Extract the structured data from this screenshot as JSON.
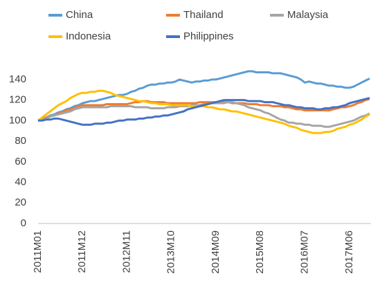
{
  "chart_data": {
    "type": "line",
    "categories": [
      "2011M01",
      null,
      null,
      null,
      null,
      null,
      null,
      null,
      null,
      null,
      null,
      "2011M12",
      null,
      null,
      null,
      null,
      null,
      null,
      null,
      null,
      null,
      null,
      "2012M11",
      null,
      null,
      null,
      null,
      null,
      null,
      null,
      null,
      null,
      null,
      "2013M10",
      null,
      null,
      null,
      null,
      null,
      null,
      null,
      null,
      null,
      null,
      "2014M09",
      null,
      null,
      null,
      null,
      null,
      null,
      null,
      null,
      null,
      null,
      "2015M08",
      null,
      null,
      null,
      null,
      null,
      null,
      null,
      null,
      null,
      null,
      "2016M07",
      null,
      null,
      null,
      null,
      null,
      null,
      null,
      null,
      null,
      null,
      "2017M06",
      null,
      null,
      null,
      null,
      null
    ],
    "series": [
      {
        "name": "China",
        "color": "#5b9bd5",
        "values": [
          100,
          102,
          103,
          105,
          106,
          108,
          109,
          111,
          112,
          114,
          115,
          117,
          118,
          119,
          119,
          120,
          121,
          122,
          123,
          124,
          125,
          125,
          126,
          128,
          129,
          131,
          132,
          134,
          135,
          135,
          136,
          136,
          137,
          137,
          138,
          140,
          139,
          138,
          137,
          138,
          138,
          139,
          139,
          140,
          140,
          141,
          142,
          143,
          144,
          145,
          146,
          147,
          148,
          148,
          147,
          147,
          147,
          147,
          146,
          146,
          146,
          145,
          144,
          143,
          142,
          140,
          137,
          138,
          137,
          136,
          136,
          135,
          134,
          134,
          133,
          133,
          132,
          132,
          133,
          135,
          137,
          139,
          141
        ]
      },
      {
        "name": "Thailand",
        "color": "#ed7d31",
        "values": [
          100,
          101,
          103,
          104,
          105,
          107,
          108,
          110,
          111,
          112,
          114,
          115,
          115,
          115,
          115,
          115,
          115,
          116,
          116,
          116,
          116,
          116,
          116,
          117,
          118,
          118,
          119,
          119,
          118,
          118,
          118,
          118,
          117,
          117,
          117,
          117,
          117,
          117,
          117,
          117,
          118,
          118,
          118,
          118,
          118,
          118,
          118,
          118,
          117,
          117,
          117,
          117,
          116,
          116,
          116,
          115,
          115,
          115,
          114,
          114,
          114,
          113,
          113,
          112,
          111,
          111,
          110,
          110,
          110,
          110,
          110,
          110,
          110,
          111,
          112,
          113,
          113,
          114,
          115,
          117,
          118,
          120,
          121
        ]
      },
      {
        "name": "Malaysia",
        "color": "#a5a5a5",
        "values": [
          100,
          101,
          102,
          104,
          105,
          106,
          107,
          108,
          109,
          111,
          112,
          113,
          113,
          113,
          113,
          113,
          113,
          113,
          114,
          114,
          114,
          114,
          114,
          114,
          113,
          113,
          113,
          113,
          112,
          112,
          112,
          112,
          113,
          113,
          113,
          114,
          114,
          114,
          115,
          115,
          115,
          116,
          116,
          117,
          117,
          117,
          117,
          118,
          118,
          117,
          116,
          115,
          113,
          112,
          111,
          110,
          108,
          107,
          105,
          103,
          101,
          100,
          98,
          98,
          97,
          97,
          96,
          96,
          95,
          95,
          95,
          94,
          94,
          95,
          96,
          97,
          98,
          99,
          100,
          102,
          104,
          105,
          107
        ]
      },
      {
        "name": "Indonesia",
        "color": "#ffc000",
        "values": [
          100,
          103,
          106,
          109,
          112,
          115,
          117,
          119,
          122,
          124,
          126,
          127,
          127,
          128,
          128,
          129,
          129,
          128,
          127,
          125,
          124,
          123,
          122,
          121,
          120,
          119,
          119,
          118,
          117,
          117,
          116,
          116,
          116,
          115,
          115,
          115,
          115,
          115,
          114,
          114,
          114,
          114,
          113,
          113,
          112,
          111,
          111,
          110,
          109,
          109,
          108,
          107,
          106,
          105,
          104,
          103,
          102,
          101,
          100,
          99,
          98,
          97,
          95,
          94,
          93,
          91,
          90,
          89,
          88,
          88,
          88,
          89,
          89,
          90,
          92,
          93,
          94,
          96,
          97,
          99,
          101,
          104,
          106
        ]
      },
      {
        "name": "Philippines",
        "color": "#4472c4",
        "values": [
          100,
          100,
          101,
          101,
          102,
          102,
          101,
          100,
          99,
          98,
          97,
          96,
          96,
          96,
          97,
          97,
          97,
          98,
          98,
          99,
          100,
          100,
          101,
          101,
          101,
          102,
          102,
          103,
          103,
          104,
          104,
          105,
          105,
          106,
          107,
          108,
          109,
          111,
          112,
          113,
          114,
          115,
          116,
          117,
          118,
          119,
          120,
          120,
          120,
          120,
          120,
          120,
          119,
          119,
          119,
          119,
          118,
          118,
          118,
          117,
          116,
          115,
          115,
          114,
          113,
          113,
          112,
          112,
          112,
          111,
          111,
          112,
          112,
          113,
          113,
          114,
          115,
          117,
          118,
          119,
          120,
          121,
          122
        ]
      }
    ],
    "ylim": [
      0,
      150
    ],
    "yticks": [
      0,
      20,
      40,
      60,
      80,
      100,
      120,
      140
    ],
    "grid": false,
    "legend": "top"
  }
}
